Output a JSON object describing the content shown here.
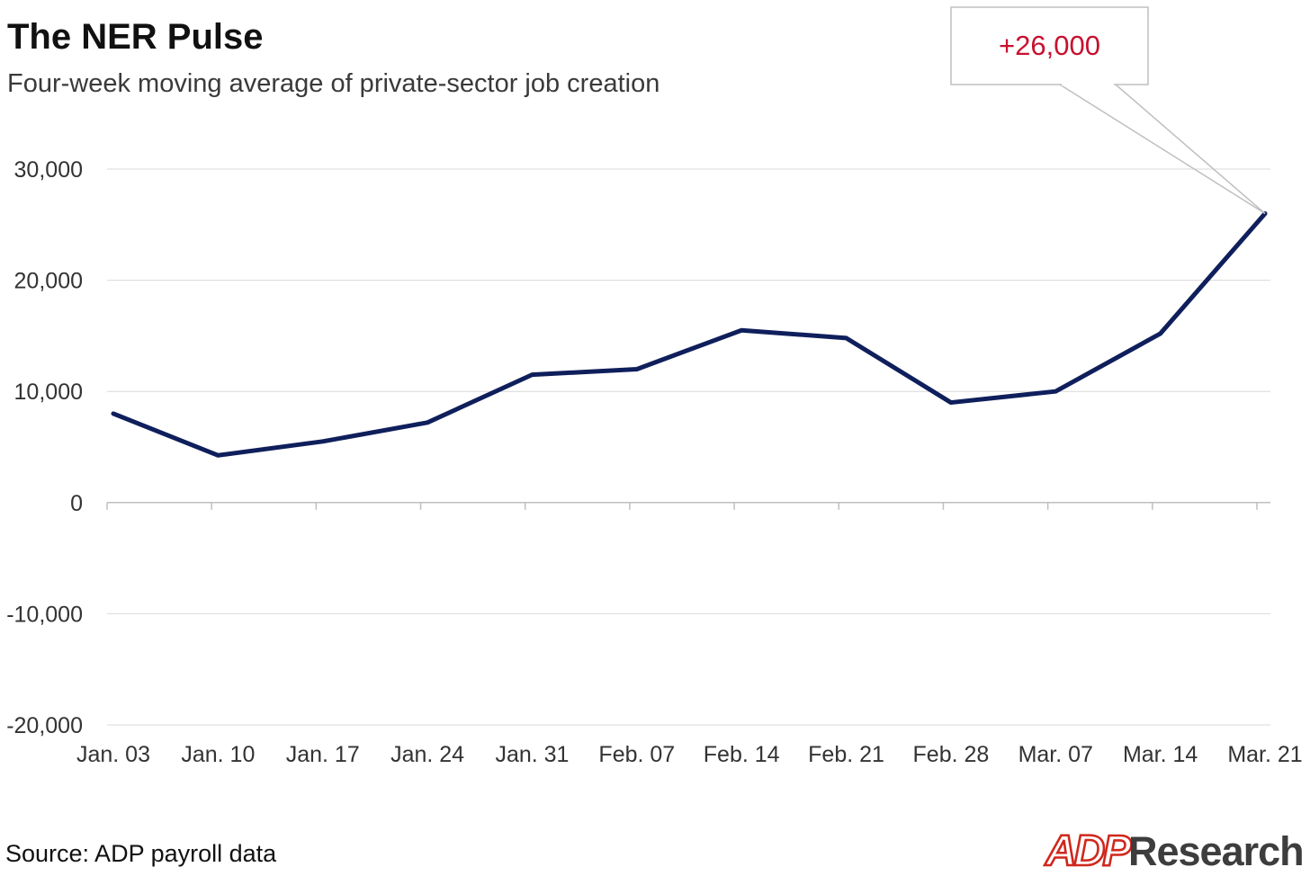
{
  "colors": {
    "line": "#0f1f5c",
    "grid": "#d9d9d9",
    "axis": "#bfbfbf",
    "callout_text": "#c8102e",
    "callout_border": "#bfbfbf",
    "logo_red": "#d0271d",
    "logo_gray": "#3d3d3d",
    "text": "#1a1a1a",
    "tick_text": "#333333"
  },
  "chart_data": {
    "type": "line",
    "title": "The NER Pulse",
    "subtitle": "Four-week moving average of private-sector job creation",
    "xlabel": "",
    "ylabel": "",
    "categories": [
      "Jan. 03",
      "Jan. 10",
      "Jan. 17",
      "Jan. 24",
      "Jan. 31",
      "Feb. 07",
      "Feb. 14",
      "Feb. 21",
      "Feb. 28",
      "Mar. 07",
      "Mar. 14",
      "Mar. 21"
    ],
    "series": [
      {
        "name": "Four-week moving average",
        "values": [
          8000,
          4250,
          5500,
          7200,
          11500,
          12000,
          15500,
          14800,
          9000,
          10000,
          15200,
          26000
        ]
      }
    ],
    "ylim": [
      -20000,
      30000
    ],
    "yticks": [
      30000,
      20000,
      10000,
      0,
      -10000,
      -20000
    ],
    "ytick_labels": [
      "30,000",
      "20,000",
      "10,000",
      "0",
      "-10,000",
      "-20,000"
    ],
    "grid": true,
    "annotation": {
      "text": "+26,000",
      "target_category": "Mar. 21",
      "target_value": 26000
    }
  },
  "footer": {
    "source": "Source: ADP payroll data",
    "logo_mark": "ADP",
    "logo_word": "Research"
  }
}
